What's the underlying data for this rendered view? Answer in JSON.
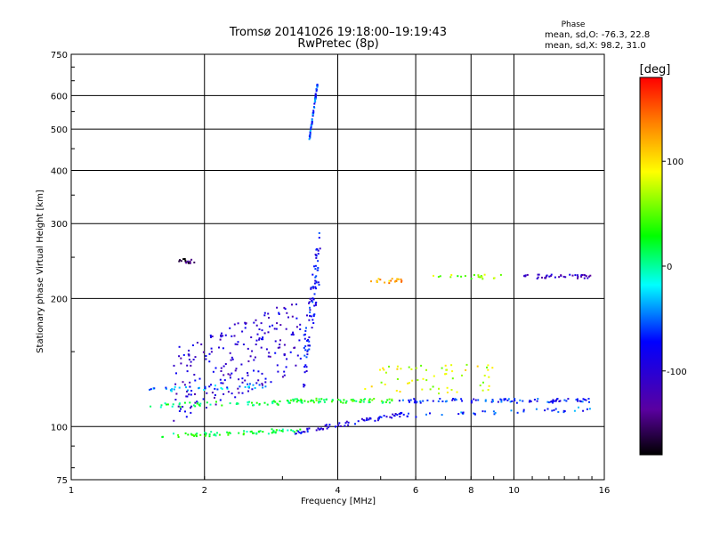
{
  "chart_data": {
    "type": "scatter",
    "title": "Tromsø 20141026  19:18:00–19:19:43",
    "subtitle": "RwPretec (8p)",
    "xlabel": "Frequency [MHz]",
    "ylabel": "Stationary phase Virtual Height [km]",
    "x_scale": "log",
    "y_scale": "log",
    "xlim": [
      1,
      16
    ],
    "ylim": [
      75,
      750
    ],
    "x_ticks": [
      1,
      2,
      4,
      6,
      8,
      10,
      16
    ],
    "x_tick_labels": [
      "1",
      "2",
      "4",
      "6",
      "8",
      "10",
      "16"
    ],
    "y_ticks": [
      75,
      100,
      200,
      300,
      400,
      500,
      600,
      750
    ],
    "y_tick_labels": [
      "75",
      "100",
      "200",
      "300",
      "400",
      "500",
      "600",
      "750"
    ],
    "grid": true,
    "stats": {
      "title": "Phase",
      "line1": "mean, sd,O: -76.3, 22.8",
      "line2": "mean, sd,X:  98.2, 31.0"
    },
    "colorbar": {
      "label": "[deg]",
      "range": [
        -180,
        180
      ],
      "ticks": [
        100,
        0,
        -100
      ],
      "tick_labels": [
        "100",
        "0",
        "-100"
      ]
    },
    "series": [
      {
        "x_range": [
          1.6,
          3.3
        ],
        "y_start": 95,
        "y_end": 98,
        "phase": 20,
        "count": 70
      },
      {
        "x_range": [
          3.2,
          5.6
        ],
        "y_start": 97,
        "y_end": 107,
        "phase": -90,
        "count": 70
      },
      {
        "x_range": [
          5.6,
          15.2
        ],
        "y_start": 106,
        "y_end": 110,
        "phase": -60,
        "count": 40
      },
      {
        "x_range": [
          1.5,
          3.1
        ],
        "y_start": 112,
        "y_end": 114,
        "phase": 10,
        "count": 50
      },
      {
        "x_range": [
          3.1,
          5.5
        ],
        "y_start": 115,
        "y_end": 115,
        "phase": 30,
        "count": 70
      },
      {
        "x_range": [
          5.5,
          15.2
        ],
        "y_start": 115,
        "y_end": 115,
        "phase": -70,
        "count": 90
      },
      {
        "x_range": [
          1.5,
          2.8
        ],
        "y_start": 122,
        "y_end": 125,
        "phase": -40,
        "count": 40
      },
      {
        "x_range": [
          1.7,
          3.3
        ],
        "y_start": 125,
        "y_end": 165,
        "phase": -100,
        "count": 220,
        "jitter": 0.2
      },
      {
        "x_range": [
          3.35,
          3.65
        ],
        "y_start": 140,
        "y_end": 260,
        "phase": -80,
        "count": 90,
        "jitter": 0.15
      },
      {
        "x_range": [
          3.45,
          3.6
        ],
        "y_start": 470,
        "y_end": 640,
        "phase": -60,
        "count": 60
      },
      {
        "x_range": [
          4.7,
          5.6
        ],
        "y_start": 220,
        "y_end": 220,
        "phase": 120,
        "count": 20
      },
      {
        "x_range": [
          10.2,
          15.0
        ],
        "y_start": 225,
        "y_end": 225,
        "phase": -110,
        "count": 40
      },
      {
        "x_range": [
          6.5,
          9.5
        ],
        "y_start": 225,
        "y_end": 225,
        "phase": 60,
        "count": 20
      },
      {
        "x_range": [
          4.6,
          9.0
        ],
        "y_start": 128,
        "y_end": 130,
        "phase": 80,
        "count": 60,
        "jitter": 0.08
      },
      {
        "x_range": [
          1.75,
          1.9
        ],
        "y_start": 245,
        "y_end": 245,
        "phase": -150,
        "count": 16
      }
    ]
  }
}
